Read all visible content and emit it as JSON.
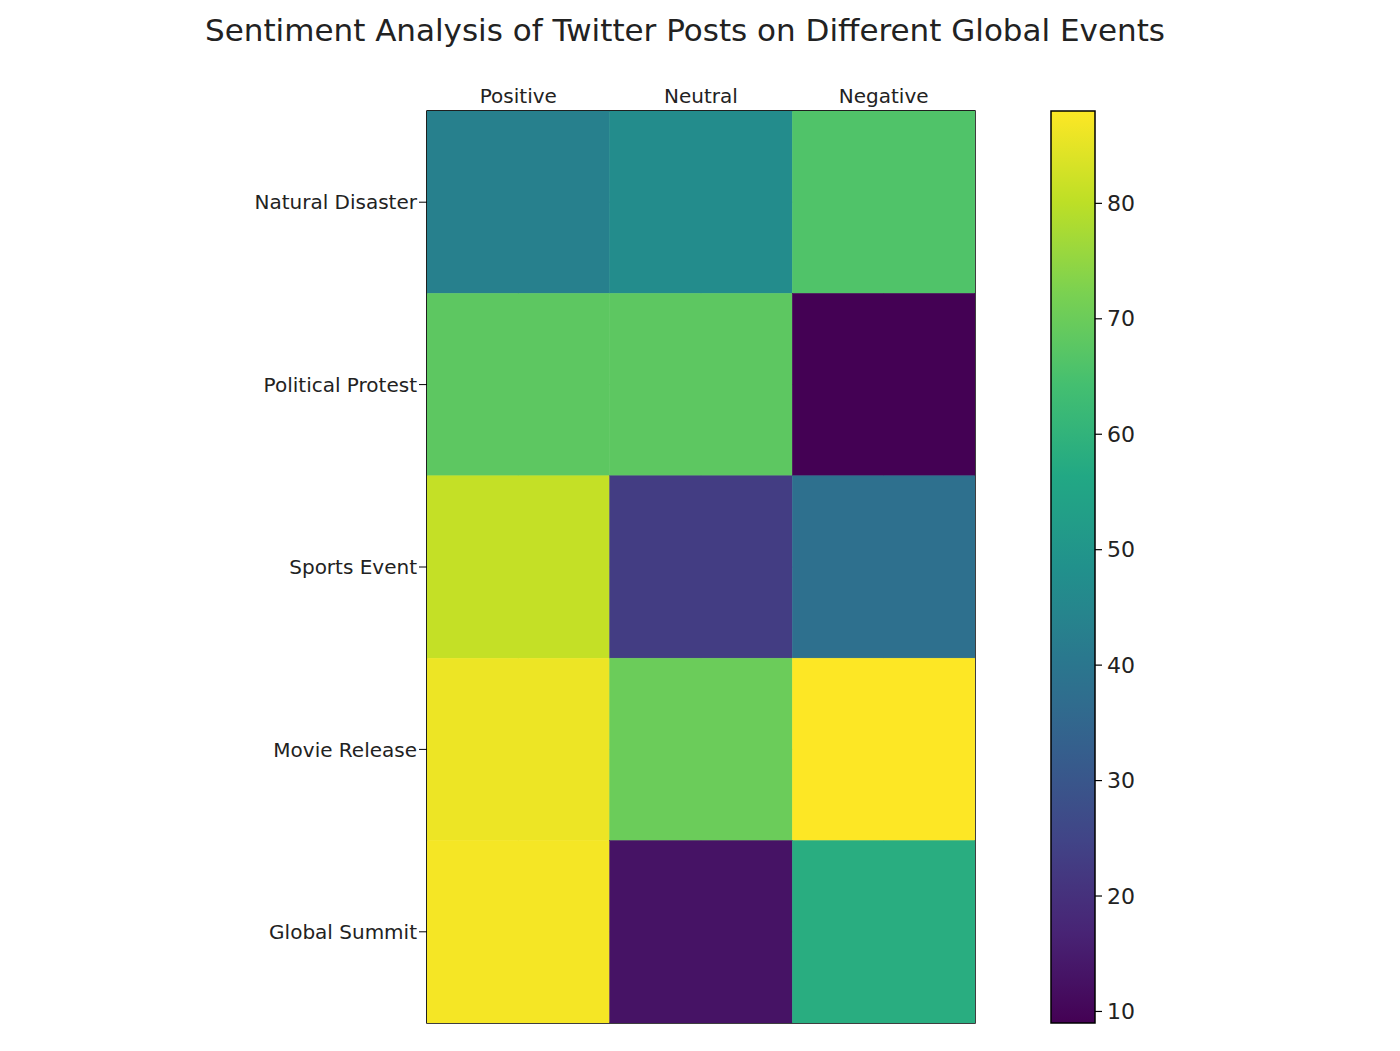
{
  "chart_data": {
    "type": "heatmap",
    "title": "Sentiment Analysis of Twitter Posts on Different Global Events",
    "categories": [
      "Positive",
      "Neutral",
      "Negative"
    ],
    "y_categories": [
      "Natural Disaster",
      "Political Protest",
      "Sports Event",
      "Movie Release",
      "Global Summit"
    ],
    "cells": [
      [
        43,
        47,
        66
      ],
      [
        68,
        68,
        9
      ],
      [
        81,
        23,
        38
      ],
      [
        86,
        70,
        88
      ],
      [
        87,
        13,
        58
      ]
    ],
    "colorbar": {
      "range": [
        9,
        88
      ],
      "ticks": [
        10,
        20,
        30,
        40,
        50,
        60,
        70,
        80
      ]
    },
    "grid": true
  }
}
